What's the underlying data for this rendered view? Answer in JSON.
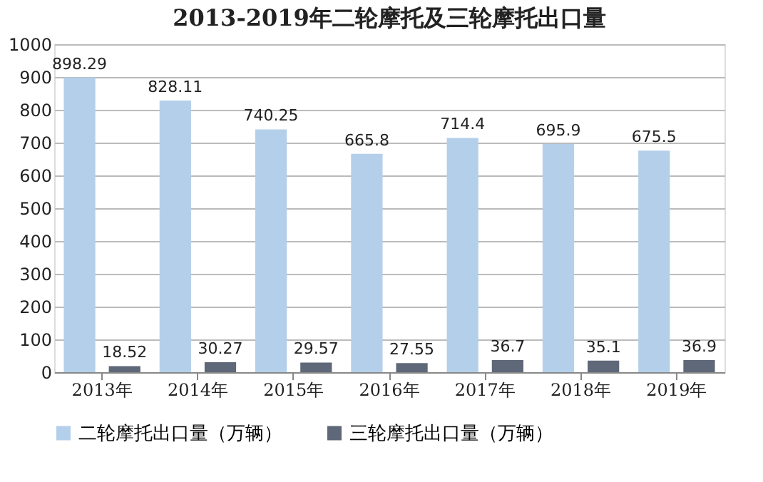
{
  "chart_data": {
    "type": "bar",
    "title": "2013-2019年二轮摩托及三轮摩托出口量",
    "categories": [
      "2013年",
      "2014年",
      "2015年",
      "2016年",
      "2017年",
      "2018年",
      "2019年"
    ],
    "series": [
      {
        "name": "二轮摩托出口量（万辆）",
        "color": "#b4cfea",
        "values": [
          898.29,
          828.11,
          740.25,
          665.8,
          714.4,
          695.9,
          675.5
        ]
      },
      {
        "name": "三轮摩托出口量（万辆）",
        "color": "#5f6878",
        "values": [
          18.52,
          30.27,
          29.57,
          27.55,
          36.7,
          35.1,
          36.9
        ]
      }
    ],
    "ylim": [
      0,
      1000
    ],
    "yticks": [
      0,
      100,
      200,
      300,
      400,
      500,
      600,
      700,
      800,
      900,
      1000
    ],
    "grid": "y",
    "legend": "bottom",
    "data_labels": true
  }
}
